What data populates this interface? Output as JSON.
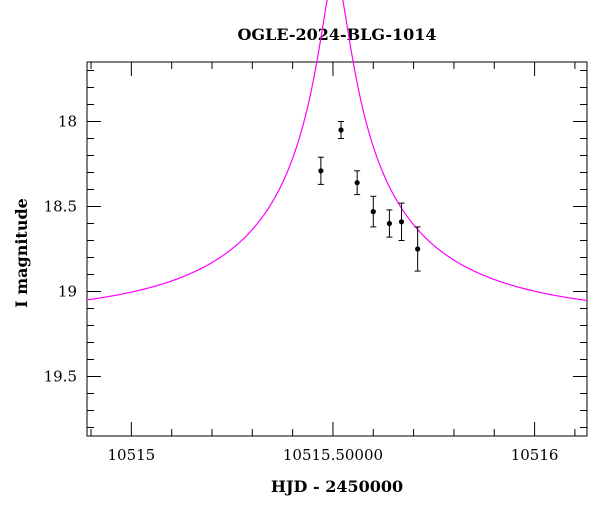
{
  "chart_data": {
    "type": "scatter",
    "title": "OGLE-2024-BLG-1014",
    "xlabel": "HJD - 2450000",
    "ylabel": "I magnitude",
    "xlim": [
      10514.89,
      10516.13
    ],
    "ylim": [
      19.85,
      17.65
    ],
    "y_inverted": true,
    "grid": false,
    "x_ticks": [
      {
        "value": 10515,
        "label": "10515"
      },
      {
        "value": 10515.5,
        "label": "10515.50000"
      },
      {
        "value": 10516,
        "label": "10516"
      }
    ],
    "y_ticks": [
      {
        "value": 18,
        "label": "18"
      },
      {
        "value": 18.5,
        "label": "18.5"
      },
      {
        "value": 19,
        "label": "19"
      },
      {
        "value": 19.5,
        "label": "19.5"
      }
    ],
    "series": [
      {
        "kind": "points",
        "color": "#000000",
        "x": [
          10515.47,
          10515.52,
          10515.56,
          10515.6,
          10515.64,
          10515.67,
          10515.71
        ],
        "y": [
          18.29,
          18.05,
          18.36,
          18.53,
          18.6,
          18.59,
          18.75
        ],
        "err": [
          0.08,
          0.05,
          0.07,
          0.09,
          0.08,
          0.11,
          0.13
        ]
      },
      {
        "kind": "model",
        "color": "#ff00ff",
        "t0": 10515.505,
        "u0": 0.0525,
        "tE": 0.6,
        "f_source": 0.3,
        "I_base": 19.15,
        "x_range": [
          10514.89,
          10516.13
        ]
      }
    ]
  }
}
